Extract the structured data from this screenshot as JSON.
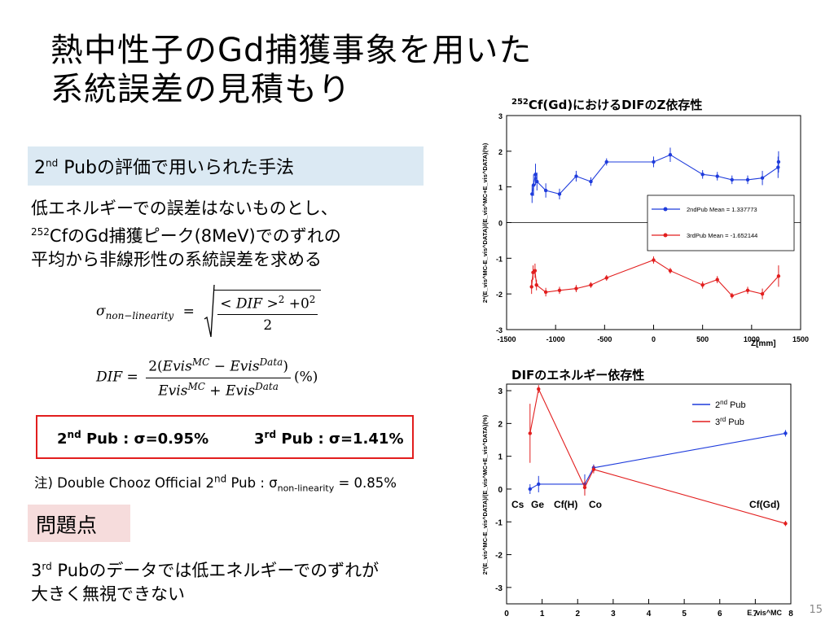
{
  "slide": {
    "title_line1": "熱中性子のGd捕獲事象を用いた",
    "title_line2": "系統誤差の見積もり",
    "page_number": "15"
  },
  "method": {
    "pre": "2",
    "sup": "nd",
    "post": " Pubの評価で用いられた手法"
  },
  "description": {
    "line1": "低エネルギーでの誤差はないものとし、",
    "line2_sup": "252",
    "line2": "CfのGd捕獲ピーク(8MeV)でのずれの",
    "line3": "平均から非線形性の系統誤差を求める"
  },
  "formula1": {
    "sigma": "σ",
    "sub": "non−linearity",
    "eq": "=",
    "num": "< DIF >",
    "num_exp": "2",
    "num_tail": " +0",
    "num_tail_exp": "2",
    "den": "2"
  },
  "formula2": {
    "lhs": "DIF =",
    "num_pre": "2(",
    "evis": "Evis",
    "mc": "MC",
    "minus": " − ",
    "data": "Data",
    "num_post": ")",
    "plus": " + ",
    "unit": "(%)"
  },
  "results": {
    "r1_pre": "2",
    "r1_sup": "nd",
    "r1_post": " Pub : σ=0.95%",
    "r2_pre": "3",
    "r2_sup": "rd",
    "r2_post": " Pub : σ=1.41%"
  },
  "note": {
    "pre": "注) Double Chooz Official 2",
    "sup": "nd",
    "mid": " Pub : σ",
    "sub": "non-linearity",
    "post": " = 0.85%"
  },
  "problem": {
    "label": "問題点",
    "line1_pre": "3",
    "line1_sup": "rd",
    "line1": " Pubのデータでは低エネルギーでのずれが",
    "line2": "大きく無視できない"
  },
  "chart_data": [
    {
      "type": "scatter",
      "title_sup": "252",
      "title": "Cf(Gd)におけるDIFのZ依存性",
      "xlabel": "Z[mm]",
      "ylabel": "2*(E_vis^MC-E_vis^DATA)/(E_vis^MC+E_vis^DATA)(%)",
      "xlim": [
        -1500,
        1500
      ],
      "ylim": [
        -3,
        3
      ],
      "xticks": [
        -1500,
        -1000,
        -500,
        0,
        500,
        1000,
        1500
      ],
      "yticks": [
        -3,
        -2,
        -1,
        0,
        1,
        2,
        3
      ],
      "legend_position": "center-right",
      "series": [
        {
          "name": "2ndPub Mean = 1.337773",
          "color": "#1f3cdc",
          "x": [
            -1240,
            -1225,
            -1205,
            -1190,
            -1100,
            -960,
            -790,
            -640,
            -480,
            0,
            170,
            500,
            650,
            800,
            960,
            1110,
            1270,
            1275
          ],
          "y": [
            0.8,
            1.05,
            1.35,
            1.15,
            0.9,
            0.8,
            1.3,
            1.15,
            1.7,
            1.7,
            1.9,
            1.35,
            1.3,
            1.2,
            1.2,
            1.25,
            1.55,
            1.7
          ],
          "err": [
            0.25,
            0.3,
            0.3,
            0.25,
            0.2,
            0.15,
            0.15,
            0.12,
            0.1,
            0.15,
            0.2,
            0.12,
            0.12,
            0.12,
            0.12,
            0.2,
            0.3,
            0.3
          ]
        },
        {
          "name": "3rdPub Mean = -1.652144",
          "color": "#e21e1e",
          "x": [
            -1245,
            -1230,
            -1210,
            -1195,
            -1100,
            -960,
            -790,
            -640,
            -480,
            0,
            170,
            500,
            650,
            800,
            960,
            1110,
            1275
          ],
          "y": [
            -1.8,
            -1.4,
            -1.35,
            -1.75,
            -1.95,
            -1.9,
            -1.85,
            -1.75,
            -1.55,
            -1.05,
            -1.35,
            -1.75,
            -1.6,
            -2.05,
            -1.9,
            -2.0,
            -1.5
          ],
          "err": [
            0.2,
            0.2,
            0.2,
            0.15,
            0.12,
            0.1,
            0.1,
            0.08,
            0.08,
            0.1,
            0.08,
            0.1,
            0.1,
            0.08,
            0.1,
            0.15,
            0.3
          ]
        }
      ]
    },
    {
      "type": "line",
      "title": "DIFのエネルギー依存性",
      "xlabel": "E_vis^MC",
      "ylabel": "2*(E_vis^MC-E_vis^DATA)/(E_vis^MC+E_vis^DATA)(%)",
      "xlim": [
        0,
        8
      ],
      "ylim": [
        -3.5,
        3.2
      ],
      "xticks": [
        0,
        1,
        2,
        3,
        4,
        5,
        6,
        7,
        8
      ],
      "yticks": [
        -3,
        -2,
        -1,
        0,
        1,
        2,
        3
      ],
      "legend_position": "top-right",
      "annotations": [
        "Cs",
        "Ge",
        "Cf(H)",
        "Co",
        "Cf(Gd)"
      ],
      "series": [
        {
          "name_pre": "2",
          "name_sup": "nd",
          "name_post": " Pub",
          "color": "#1f3cdc",
          "x": [
            0.66,
            0.9,
            2.2,
            2.45,
            7.85
          ],
          "y": [
            0.0,
            0.15,
            0.15,
            0.65,
            1.7
          ],
          "err": [
            0.15,
            0.25,
            0.3,
            0.1,
            0.1
          ]
        },
        {
          "name_pre": "3",
          "name_sup": "rd",
          "name_post": " Pub",
          "color": "#e21e1e",
          "x": [
            0.66,
            0.9,
            2.2,
            2.45,
            7.85
          ],
          "y": [
            1.7,
            3.05,
            0.05,
            0.6,
            -1.05
          ],
          "err": [
            0.9,
            0.12,
            0.25,
            0.12,
            0.08
          ]
        }
      ]
    }
  ]
}
